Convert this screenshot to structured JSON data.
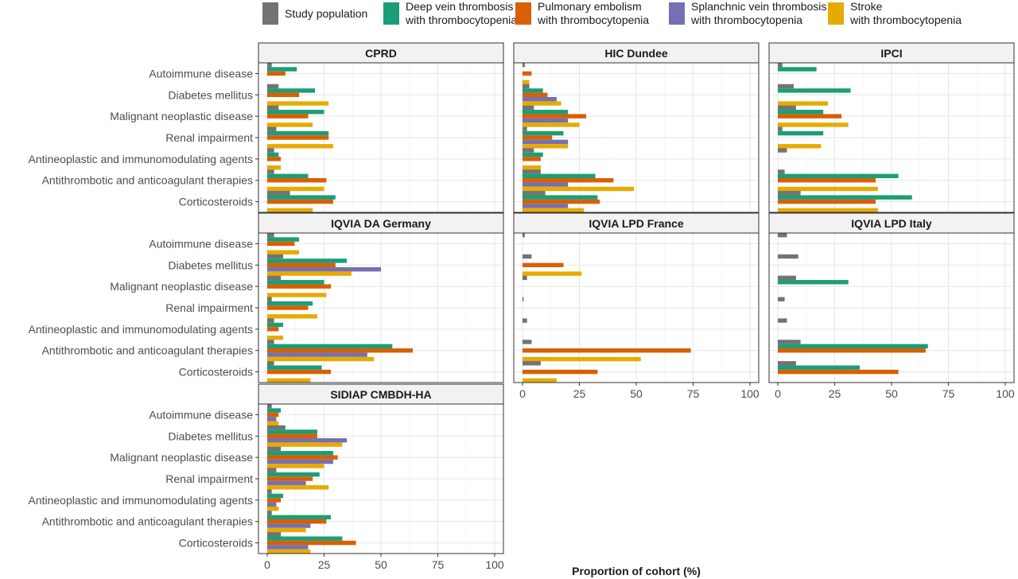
{
  "chart_data": {
    "type": "bar",
    "orientation": "horizontal",
    "xlabel": "Proportion of cohort (%)",
    "xlim": [
      0,
      100
    ],
    "xticks": [
      0,
      25,
      50,
      75,
      100
    ],
    "legend_position": "top",
    "series": [
      {
        "name": "Study population",
        "color": "#737373"
      },
      {
        "name": "Deep vein thrombosis\nwith thrombocytopenia",
        "color": "#1b9e77"
      },
      {
        "name": "Pulmonary embolism\nwith thrombocytopenia",
        "color": "#d95f02"
      },
      {
        "name": "Splanchnic vein thrombosis\nwith thrombocytopenia",
        "color": "#7570b3"
      },
      {
        "name": "Stroke\nwith thrombocytopenia",
        "color": "#e6ab02"
      }
    ],
    "categories": [
      "Autoimmune disease",
      "Diabetes mellitus",
      "Malignant neoplastic disease",
      "Renal impairment",
      "Antineoplastic and immunomodulating agents",
      "Antithrombotic and anticoagulant therapies",
      "Corticosteroids"
    ],
    "panels": [
      {
        "title": "CPRD",
        "values": [
          [
            2,
            13,
            8,
            null,
            null
          ],
          [
            5,
            21,
            14,
            null,
            27
          ],
          [
            5,
            25,
            18,
            null,
            20
          ],
          [
            4,
            27,
            27,
            null,
            29
          ],
          [
            3,
            5,
            6,
            null,
            6
          ],
          [
            3,
            18,
            26,
            null,
            25
          ],
          [
            10,
            30,
            29,
            null,
            20
          ]
        ]
      },
      {
        "title": "HIC Dundee",
        "values": [
          [
            1,
            null,
            4,
            null,
            3
          ],
          [
            3,
            9,
            11,
            15,
            17
          ],
          [
            5,
            20,
            28,
            20,
            25
          ],
          [
            2,
            18,
            13,
            20,
            20
          ],
          [
            5,
            9,
            8,
            null,
            8
          ],
          [
            8,
            32,
            40,
            20,
            49
          ],
          [
            10,
            33,
            34,
            20,
            27
          ]
        ]
      },
      {
        "title": "IPCI",
        "values": [
          [
            2,
            17,
            null,
            null,
            null
          ],
          [
            7,
            32,
            null,
            null,
            22
          ],
          [
            8,
            20,
            28,
            null,
            31
          ],
          [
            2,
            20,
            null,
            null,
            19
          ],
          [
            4,
            null,
            null,
            null,
            null
          ],
          [
            3,
            53,
            43,
            null,
            44
          ],
          [
            10,
            59,
            43,
            null,
            44
          ]
        ]
      },
      {
        "title": "IQVIA DA Germany",
        "values": [
          [
            3,
            14,
            12,
            null,
            14
          ],
          [
            7,
            35,
            30,
            50,
            37
          ],
          [
            6,
            25,
            28,
            null,
            26
          ],
          [
            2,
            20,
            18,
            null,
            22
          ],
          [
            3,
            7,
            5,
            null,
            7
          ],
          [
            3,
            55,
            64,
            44,
            47
          ],
          [
            3,
            24,
            28,
            null,
            19
          ]
        ]
      },
      {
        "title": "IQVIA LPD France",
        "values": [
          [
            1,
            null,
            null,
            null,
            null
          ],
          [
            4,
            null,
            18,
            null,
            26
          ],
          [
            2,
            null,
            null,
            null,
            null
          ],
          [
            0.5,
            null,
            null,
            null,
            null
          ],
          [
            2,
            null,
            null,
            null,
            null
          ],
          [
            4,
            null,
            74,
            null,
            52
          ],
          [
            8,
            null,
            33,
            null,
            15
          ]
        ]
      },
      {
        "title": "IQVIA LPD Italy",
        "values": [
          [
            4,
            null,
            null,
            null,
            null
          ],
          [
            9,
            null,
            null,
            null,
            null
          ],
          [
            8,
            31,
            null,
            null,
            null
          ],
          [
            3,
            null,
            null,
            null,
            null
          ],
          [
            4,
            null,
            null,
            null,
            null
          ],
          [
            10,
            66,
            65,
            null,
            null
          ],
          [
            8,
            36,
            53,
            null,
            null
          ]
        ]
      },
      {
        "title": "SIDIAP CMBDH-HA",
        "values": [
          [
            2,
            6,
            5,
            4,
            5
          ],
          [
            8,
            22,
            22,
            35,
            33
          ],
          [
            6,
            29,
            31,
            29,
            25
          ],
          [
            4,
            23,
            20,
            17,
            27
          ],
          [
            2,
            7,
            6,
            4,
            5
          ],
          [
            2,
            28,
            26,
            19,
            17
          ],
          [
            6,
            33,
            39,
            18,
            19
          ]
        ]
      }
    ]
  }
}
